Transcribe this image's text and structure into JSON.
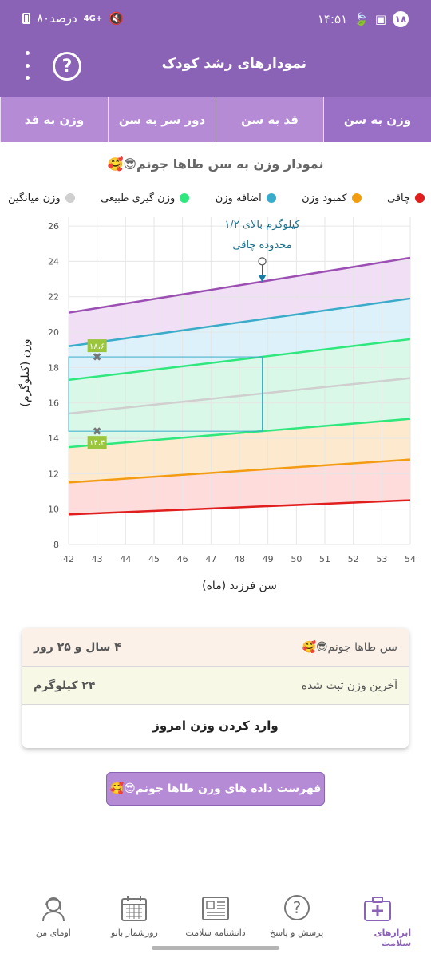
{
  "status_bar": {
    "time": "۱۴:۵۱",
    "notif_count": "۱۸",
    "network": "4G+",
    "battery": "۸۰درصد"
  },
  "app_bar": {
    "title": "نمودارهای رشد کودک",
    "help_icon": "question-circle-icon",
    "menu_icon": "more-vertical-icon"
  },
  "tabs": [
    {
      "label": "وزن به سن",
      "active": true
    },
    {
      "label": "قد به سن",
      "active": false
    },
    {
      "label": "دور سر به سن",
      "active": false
    },
    {
      "label": "وزن به قد",
      "active": false
    }
  ],
  "chart_title": "نمودار وزن به سن طاها جونم😎🥰",
  "legend": [
    {
      "label": "چاقی",
      "color": "#e01e1e"
    },
    {
      "label": "کمبود وزن",
      "color": "#f39c12"
    },
    {
      "label": "اضافه وزن",
      "color": "#3aacc9"
    },
    {
      "label": "وزن گیری طبیعی",
      "color": "#2ee87e"
    },
    {
      "label": "وزن میانگین",
      "color": "#cfcfcf"
    }
  ],
  "chart_data": {
    "type": "line",
    "xlabel": "سن فرزند (ماه)",
    "ylabel": "وزن (کیلوگرم)",
    "xlim": [
      42,
      54
    ],
    "ylim": [
      8,
      26.5
    ],
    "x_ticks": [
      42,
      43,
      44,
      45,
      46,
      47,
      48,
      49,
      50,
      51,
      52,
      53,
      54
    ],
    "y_ticks": [
      8,
      10,
      12,
      14,
      16,
      18,
      20,
      22,
      24,
      26
    ],
    "grid": true,
    "series": [
      {
        "color": "#e01e1e",
        "fill": "#ffd6d6",
        "x": [
          42,
          54
        ],
        "y": [
          9.7,
          10.5
        ]
      },
      {
        "color": "#f39c12",
        "fill": "#fde6c6",
        "x": [
          42,
          54
        ],
        "y": [
          11.5,
          12.8
        ]
      },
      {
        "color": "#2ee87e",
        "fill": "#d4f7e3",
        "x": [
          42,
          54
        ],
        "y": [
          13.5,
          15.1
        ]
      },
      {
        "color": "#cfcfcf",
        "fill": null,
        "x": [
          42,
          54
        ],
        "y": [
          15.4,
          17.4
        ]
      },
      {
        "color": "#2ee87e",
        "fill": "#d4f7e3",
        "x": [
          42,
          54
        ],
        "y": [
          17.3,
          19.6
        ]
      },
      {
        "color": "#3aacc9",
        "fill": "#d6eff8",
        "x": [
          42,
          54
        ],
        "y": [
          19.2,
          21.9
        ]
      },
      {
        "color": "#9b4fb3",
        "fill": "#eedaf3",
        "x": [
          42,
          54
        ],
        "y": [
          21.1,
          24.2
        ]
      }
    ],
    "markers": [
      {
        "x": 43,
        "y": 18.6,
        "label": "۱۸،۶"
      },
      {
        "x": 43,
        "y": 14.4,
        "label": "۱۴،۴"
      }
    ],
    "guide_box": {
      "x": [
        43,
        48.8
      ],
      "y": [
        14.4,
        18.6
      ]
    },
    "current_point": {
      "x": 48.8,
      "y": 24
    },
    "annotation_lines": [
      "۱/۲ کیلوگرم بالای",
      "محدوده چاقی"
    ]
  },
  "info": {
    "age_label": "سن طاها جونم😎🥰",
    "age_value": "۴ سال و ۲۵ روز",
    "weight_label": "آخرین وزن ثبت شده",
    "weight_value": "۲۴ کیلوگرم",
    "action_label": "وارد کردن وزن امروز"
  },
  "list_button": "فهرست داده های وزن طاها جونم😎🥰",
  "bottom_nav": [
    {
      "label": "ابزارهای سلامت",
      "icon": "first-aid-kit-icon",
      "active": true
    },
    {
      "label": "پرسش و پاسخ",
      "icon": "question-bubble-icon",
      "active": false
    },
    {
      "label": "دانشنامه سلامت",
      "icon": "newspaper-icon",
      "active": false
    },
    {
      "label": "روزشمار بانو",
      "icon": "calendar-icon",
      "active": false
    },
    {
      "label": "اومای من",
      "icon": "woman-avatar-icon",
      "active": false
    }
  ]
}
